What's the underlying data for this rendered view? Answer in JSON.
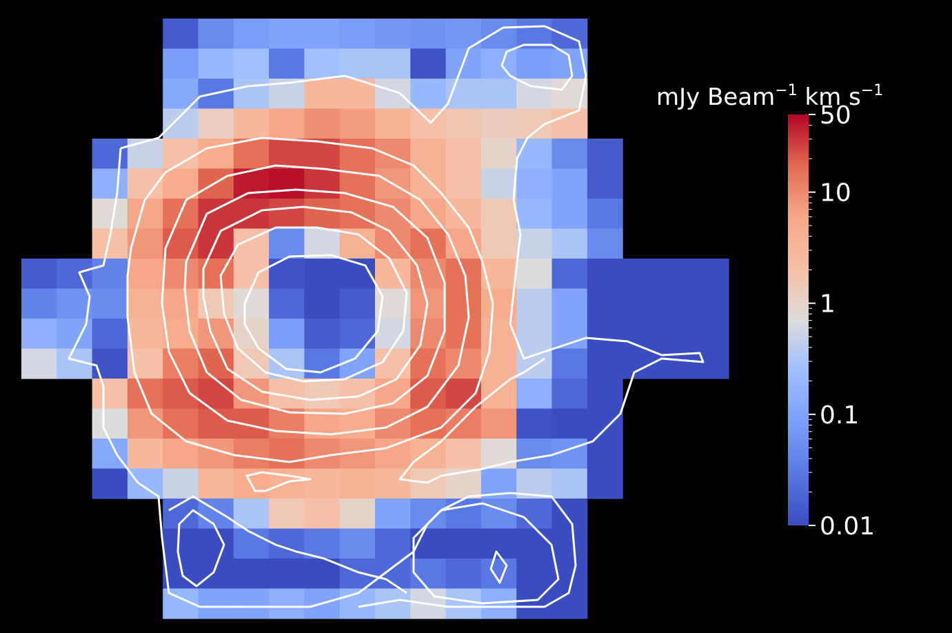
{
  "chart_data": {
    "type": "heatmap",
    "title": "",
    "xlabel": "",
    "ylabel": "",
    "colorbar": {
      "label": "mJy Beam$^{-1}$ km s$^{-1}$",
      "label_parts": [
        "mJy Beam",
        "−1",
        " km s",
        "−1"
      ],
      "scale": "log",
      "range": [
        0.01,
        50
      ],
      "colormap": "coolwarm",
      "ticks": [
        {
          "value": 50,
          "label": "50"
        },
        {
          "value": 10,
          "label": "10"
        },
        {
          "value": 1,
          "label": "1"
        },
        {
          "value": 0.1,
          "label": "0.1"
        },
        {
          "value": 0.01,
          "label": "0.01"
        }
      ]
    },
    "grid": false,
    "legend": "none",
    "contour_color": "#ffffff",
    "background": "#000000",
    "rows": 20,
    "cols": 20,
    "values": [
      [
        null,
        null,
        null,
        null,
        0.015,
        0.05,
        0.08,
        0.1,
        0.1,
        0.08,
        0.07,
        0.06,
        0.07,
        0.05,
        0.03,
        0.02,
        null,
        null,
        null,
        null
      ],
      [
        null,
        null,
        null,
        null,
        0.08,
        0.2,
        0.25,
        0.03,
        0.25,
        0.3,
        0.3,
        0.012,
        0.1,
        0.15,
        0.08,
        0.1,
        null,
        null,
        null,
        null
      ],
      [
        null,
        null,
        null,
        null,
        0.12,
        0.03,
        0.3,
        0.5,
        3,
        3,
        0.6,
        0.2,
        0.3,
        0.3,
        0.6,
        0.8,
        null,
        null,
        null,
        null
      ],
      [
        null,
        null,
        null,
        null,
        0.4,
        1.2,
        3,
        6,
        9,
        7,
        4,
        2,
        1.6,
        1.3,
        1.5,
        2,
        null,
        null,
        null,
        null
      ],
      [
        null,
        null,
        0.02,
        0.5,
        2,
        5,
        15,
        25,
        25,
        15,
        10,
        4,
        2,
        1,
        0.2,
        0.05,
        0.015,
        null,
        null,
        null
      ],
      [
        null,
        null,
        0.15,
        2,
        5,
        18,
        40,
        45,
        30,
        15,
        8,
        4,
        2,
        0.5,
        0.15,
        0.1,
        0.015,
        null,
        null,
        null
      ],
      [
        null,
        null,
        0.8,
        6,
        15,
        30,
        30,
        25,
        18,
        15,
        10,
        6,
        3,
        1.5,
        0.2,
        0.1,
        0.03,
        null,
        null,
        null
      ],
      [
        null,
        null,
        2,
        8,
        20,
        30,
        2,
        0.05,
        0.6,
        4,
        10,
        15,
        6,
        1.5,
        0.5,
        0.3,
        0.05,
        null,
        null,
        null
      ],
      [
        0.015,
        0.02,
        0.04,
        6,
        10,
        15,
        2,
        0.012,
        0.01,
        0.01,
        3,
        10,
        15,
        3,
        0.7,
        0.02,
        0.01,
        0.01,
        0.01,
        0.01
      ],
      [
        0.04,
        0.06,
        0.05,
        4,
        6,
        1.5,
        0.8,
        0.02,
        0.01,
        0.015,
        0.8,
        8,
        15,
        5,
        0.4,
        0.1,
        0.01,
        0.01,
        0.01,
        0.01
      ],
      [
        0.15,
        0.1,
        0.02,
        3,
        5,
        8,
        1,
        0.08,
        0.015,
        0.02,
        0.6,
        10,
        15,
        4,
        0.4,
        0.1,
        0.01,
        0.01,
        0.01,
        0.01
      ],
      [
        0.6,
        0.3,
        0.012,
        2,
        12,
        18,
        1.5,
        0.3,
        0.03,
        0.1,
        2,
        15,
        10,
        4,
        0.4,
        0.03,
        0.01,
        0.01,
        0.01,
        0.01
      ],
      [
        null,
        null,
        2,
        15,
        20,
        25,
        8,
        2,
        1.5,
        2,
        6,
        20,
        25,
        4,
        0.15,
        0.02,
        0.01,
        null,
        null,
        null
      ],
      [
        null,
        null,
        0.7,
        8,
        15,
        20,
        20,
        12,
        6,
        5,
        10,
        15,
        12,
        8,
        0.012,
        0.01,
        0.01,
        null,
        null,
        null
      ],
      [
        null,
        null,
        0.12,
        3,
        6,
        8,
        12,
        15,
        10,
        8,
        6,
        4,
        2,
        0.8,
        0.05,
        0.06,
        0.01,
        null,
        null,
        null
      ],
      [
        null,
        null,
        0.01,
        0.2,
        0.5,
        3,
        5,
        4,
        3,
        4,
        3,
        1.5,
        1,
        0.1,
        0.4,
        0.3,
        0.01,
        null,
        null,
        null
      ],
      [
        null,
        null,
        null,
        null,
        0.02,
        0.04,
        0.3,
        1.5,
        2,
        1,
        0.1,
        0.05,
        0.03,
        0.05,
        0.02,
        0.01,
        null,
        null,
        null,
        null
      ],
      [
        null,
        null,
        null,
        null,
        0.01,
        0.01,
        0.03,
        0.02,
        0.03,
        0.05,
        0.02,
        0.01,
        0.01,
        0.01,
        0.01,
        0.01,
        null,
        null,
        null,
        null
      ],
      [
        null,
        null,
        null,
        null,
        0.01,
        0.01,
        0.01,
        0.01,
        0.01,
        0.02,
        0.02,
        0.03,
        0.02,
        0.03,
        0.01,
        0.01,
        null,
        null,
        null,
        null
      ],
      [
        null,
        null,
        null,
        null,
        0.2,
        0.1,
        0.1,
        0.15,
        0.1,
        0.2,
        0.3,
        0.6,
        0.3,
        0.15,
        0.01,
        0.01,
        null,
        null,
        null,
        null
      ]
    ]
  }
}
